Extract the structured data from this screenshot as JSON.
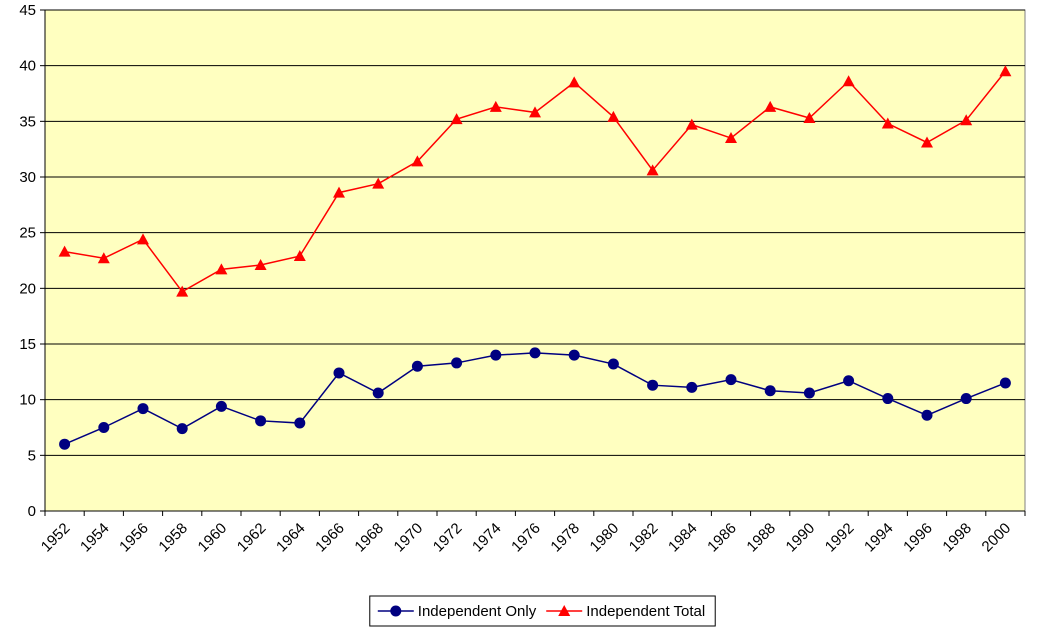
{
  "chart_data": {
    "type": "line",
    "categories": [
      "1952",
      "1954",
      "1956",
      "1958",
      "1960",
      "1962",
      "1964",
      "1966",
      "1968",
      "1970",
      "1972",
      "1974",
      "1976",
      "1978",
      "1980",
      "1982",
      "1984",
      "1986",
      "1988",
      "1990",
      "1992",
      "1994",
      "1996",
      "1998",
      "2000"
    ],
    "series": [
      {
        "name": "Independent Only",
        "color": "#000080",
        "marker": "circle",
        "values": [
          6,
          7.5,
          9.2,
          7.4,
          9.4,
          8.1,
          7.9,
          12.4,
          10.6,
          13,
          13.3,
          14,
          14.2,
          14,
          13.2,
          11.3,
          11.1,
          11.8,
          10.8,
          10.6,
          11.7,
          10.1,
          8.6,
          10.1,
          11.5
        ]
      },
      {
        "name": "Independent Total",
        "color": "#ff0000",
        "marker": "triangle",
        "values": [
          23.3,
          22.7,
          24.4,
          19.7,
          21.7,
          22.1,
          22.9,
          28.6,
          29.4,
          31.4,
          35.2,
          36.3,
          35.8,
          38.5,
          35.4,
          30.6,
          34.7,
          33.5,
          36.3,
          35.3,
          38.6,
          34.8,
          33.1,
          35.1,
          39.5
        ]
      }
    ],
    "ylim": [
      0,
      45
    ],
    "yticks": [
      0,
      5,
      10,
      15,
      20,
      25,
      30,
      35,
      40,
      45
    ],
    "grid": true,
    "legend": "bottom",
    "plot_background": "#ffffc0"
  }
}
